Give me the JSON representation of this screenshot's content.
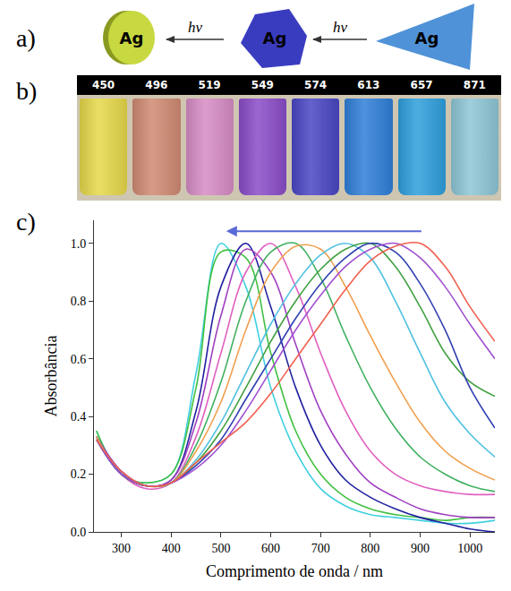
{
  "panel_a": {
    "label": "a)",
    "particles": [
      {
        "text": "Ag",
        "color": "#c8d840",
        "shape": "disc"
      },
      {
        "text": "Ag",
        "color": "#3a3cc0",
        "shape": "truncated_triangle"
      },
      {
        "text": "Ag",
        "color": "#4f92d8",
        "shape": "triangle"
      }
    ],
    "arrows": [
      "hν",
      "hν"
    ]
  },
  "panel_b": {
    "label": "b)",
    "vials": [
      {
        "label": 450,
        "color": "#e6d84a"
      },
      {
        "label": 496,
        "color": "#cf8a72"
      },
      {
        "label": 519,
        "color": "#d68cc4"
      },
      {
        "label": 549,
        "color": "#8a4cc8"
      },
      {
        "label": 574,
        "color": "#4a46c4"
      },
      {
        "label": 613,
        "color": "#2f7fd8"
      },
      {
        "label": 657,
        "color": "#2e9fdc"
      },
      {
        "label": 871,
        "color": "#8ec6d6"
      }
    ]
  },
  "chart_data": {
    "type": "line",
    "label": "c)",
    "x_label": "Comprimento de onda / nm",
    "y_label": "Absorbância",
    "x": [
      250,
      300,
      350,
      400,
      450,
      500,
      550,
      600,
      650,
      700,
      750,
      800,
      850,
      900,
      950,
      1000,
      1050
    ],
    "xlim": [
      245,
      1050
    ],
    "xticks": [
      300,
      400,
      500,
      600,
      700,
      800,
      900,
      1000
    ],
    "ylim": [
      0,
      1.08
    ],
    "yticks": [
      {
        "value": 0,
        "label": "0.0"
      },
      {
        "value": 0.2,
        "label": "0.2"
      },
      {
        "value": 0.4,
        "label": "0.4"
      },
      {
        "value": 0.6,
        "label": "0.6"
      },
      {
        "value": 0.8,
        "label": "0.8"
      },
      {
        "value": 1,
        "label": "1.0"
      }
    ],
    "grid": false,
    "series": [
      {
        "color": "#40d0e0",
        "values": [
          0.35,
          0.2,
          0.17,
          0.2,
          0.55,
          1.0,
          0.85,
          0.5,
          0.28,
          0.15,
          0.09,
          0.06,
          0.05,
          0.04,
          0.03,
          0.03,
          0.04
        ]
      },
      {
        "color": "#40c040",
        "values": [
          0.35,
          0.2,
          0.17,
          0.2,
          0.5,
          0.97,
          0.95,
          0.62,
          0.35,
          0.2,
          0.12,
          0.08,
          0.06,
          0.05,
          0.04,
          0.05,
          0.05
        ]
      },
      {
        "color": "#2020a0",
        "values": [
          0.33,
          0.21,
          0.16,
          0.18,
          0.42,
          0.85,
          1.0,
          0.78,
          0.5,
          0.3,
          0.18,
          0.12,
          0.08,
          0.05,
          0.03,
          0.01,
          0.0
        ]
      },
      {
        "color": "#a040c0",
        "values": [
          0.33,
          0.21,
          0.16,
          0.18,
          0.38,
          0.75,
          0.98,
          0.9,
          0.65,
          0.42,
          0.27,
          0.17,
          0.12,
          0.08,
          0.06,
          0.05,
          0.05
        ]
      },
      {
        "color": "#e060c0",
        "values": [
          0.33,
          0.2,
          0.15,
          0.17,
          0.33,
          0.62,
          0.9,
          1.0,
          0.85,
          0.62,
          0.42,
          0.28,
          0.2,
          0.16,
          0.14,
          0.13,
          0.13
        ]
      },
      {
        "color": "#40b060",
        "values": [
          0.33,
          0.2,
          0.16,
          0.17,
          0.3,
          0.52,
          0.8,
          0.97,
          1.0,
          0.88,
          0.68,
          0.5,
          0.36,
          0.26,
          0.2,
          0.16,
          0.14
        ]
      },
      {
        "color": "#f0a050",
        "values": [
          0.33,
          0.2,
          0.16,
          0.17,
          0.28,
          0.45,
          0.7,
          0.9,
          0.99,
          0.98,
          0.85,
          0.68,
          0.52,
          0.38,
          0.28,
          0.22,
          0.18
        ]
      },
      {
        "color": "#50c0e0",
        "values": [
          0.32,
          0.2,
          0.16,
          0.17,
          0.25,
          0.38,
          0.55,
          0.72,
          0.86,
          0.96,
          1.0,
          0.95,
          0.8,
          0.62,
          0.45,
          0.34,
          0.26
        ]
      },
      {
        "color": "#40a040",
        "values": [
          0.32,
          0.2,
          0.16,
          0.17,
          0.24,
          0.35,
          0.5,
          0.66,
          0.8,
          0.91,
          0.98,
          1.0,
          0.92,
          0.78,
          0.62,
          0.52,
          0.47
        ]
      },
      {
        "color": "#3040b0",
        "values": [
          0.32,
          0.2,
          0.16,
          0.17,
          0.23,
          0.32,
          0.46,
          0.6,
          0.74,
          0.86,
          0.95,
          1.0,
          0.97,
          0.86,
          0.7,
          0.5,
          0.36
        ]
      },
      {
        "color": "#a050d0",
        "values": [
          0.32,
          0.2,
          0.16,
          0.17,
          0.22,
          0.3,
          0.42,
          0.56,
          0.7,
          0.82,
          0.92,
          0.98,
          1.0,
          0.95,
          0.85,
          0.72,
          0.6
        ]
      },
      {
        "color": "#f06050",
        "values": [
          0.32,
          0.21,
          0.16,
          0.17,
          0.24,
          0.31,
          0.38,
          0.48,
          0.6,
          0.72,
          0.84,
          0.94,
          0.99,
          1.0,
          0.92,
          0.78,
          0.66
        ]
      }
    ]
  }
}
